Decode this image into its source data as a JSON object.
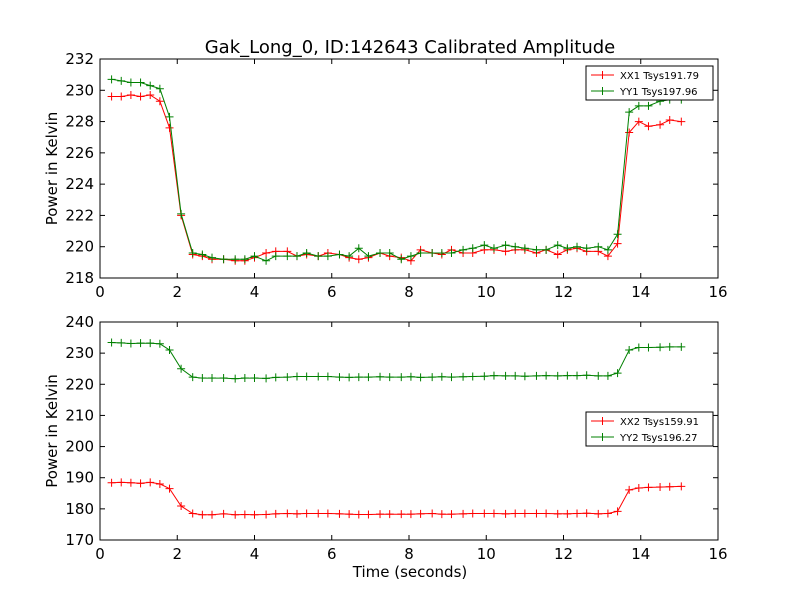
{
  "chart_data": [
    {
      "type": "line",
      "title": "Gak_Long_0, ID:142643 Calibrated Amplitude",
      "xlabel": "",
      "ylabel": "Power in Kelvin",
      "xlim": [
        0,
        16
      ],
      "ylim": [
        218,
        232
      ],
      "xticks": [
        0,
        2,
        4,
        6,
        8,
        10,
        12,
        14,
        16
      ],
      "yticks": [
        218,
        220,
        222,
        224,
        226,
        228,
        230,
        232
      ],
      "legend_position": "upper-right",
      "x": [
        0.3,
        0.55,
        0.8,
        1.05,
        1.3,
        1.55,
        1.8,
        2.1,
        2.4,
        2.65,
        2.9,
        3.2,
        3.5,
        3.75,
        4.0,
        4.3,
        4.55,
        4.85,
        5.1,
        5.35,
        5.65,
        5.9,
        6.2,
        6.45,
        6.7,
        6.95,
        7.25,
        7.5,
        7.8,
        8.05,
        8.3,
        8.6,
        8.85,
        9.1,
        9.4,
        9.65,
        9.95,
        10.2,
        10.5,
        10.75,
        11.0,
        11.3,
        11.55,
        11.85,
        12.1,
        12.35,
        12.6,
        12.9,
        13.15,
        13.4,
        13.7,
        13.95,
        14.2,
        14.5,
        14.75,
        15.05
      ],
      "series": [
        {
          "name": "XX1 Tsys191.79",
          "color": "#ff0000",
          "values": [
            229.6,
            229.6,
            229.7,
            229.6,
            229.7,
            229.3,
            227.6,
            222.0,
            219.5,
            219.4,
            219.2,
            219.2,
            219.1,
            219.1,
            219.3,
            219.6,
            219.7,
            219.7,
            219.4,
            219.5,
            219.4,
            219.6,
            219.5,
            219.3,
            219.2,
            219.3,
            219.6,
            219.4,
            219.3,
            219.1,
            219.8,
            219.6,
            219.5,
            219.8,
            219.6,
            219.6,
            219.8,
            219.8,
            219.7,
            219.8,
            219.8,
            219.6,
            219.8,
            219.5,
            219.8,
            219.9,
            219.7,
            219.7,
            219.4,
            220.2,
            227.3,
            228.0,
            227.7,
            227.8,
            228.1,
            228.0
          ]
        },
        {
          "name": "YY1 Tsys197.96",
          "color": "#008000",
          "values": [
            230.7,
            230.6,
            230.5,
            230.5,
            230.3,
            230.1,
            228.3,
            222.1,
            219.6,
            219.5,
            219.3,
            219.2,
            219.2,
            219.2,
            219.4,
            219.1,
            219.4,
            219.4,
            219.4,
            219.6,
            219.4,
            219.4,
            219.5,
            219.4,
            219.9,
            219.4,
            219.6,
            219.6,
            219.2,
            219.4,
            219.6,
            219.6,
            219.6,
            219.6,
            219.8,
            219.9,
            220.1,
            219.9,
            220.1,
            220.0,
            219.9,
            219.8,
            219.8,
            220.1,
            219.9,
            220.0,
            219.9,
            220.0,
            219.8,
            220.8,
            228.6,
            229.0,
            229.0,
            229.3,
            229.4,
            229.4
          ]
        }
      ]
    },
    {
      "type": "line",
      "title": "",
      "xlabel": "Time (seconds)",
      "ylabel": "Power in Kelvin",
      "xlim": [
        0,
        16
      ],
      "ylim": [
        170,
        240
      ],
      "xticks": [
        0,
        2,
        4,
        6,
        8,
        10,
        12,
        14,
        16
      ],
      "yticks": [
        170,
        180,
        190,
        200,
        210,
        220,
        230,
        240
      ],
      "legend_position": "center-right",
      "x": [
        0.3,
        0.55,
        0.8,
        1.05,
        1.3,
        1.55,
        1.8,
        2.1,
        2.4,
        2.65,
        2.9,
        3.2,
        3.5,
        3.75,
        4.0,
        4.3,
        4.55,
        4.85,
        5.1,
        5.35,
        5.65,
        5.9,
        6.2,
        6.45,
        6.7,
        6.95,
        7.25,
        7.5,
        7.8,
        8.05,
        8.3,
        8.6,
        8.85,
        9.1,
        9.4,
        9.65,
        9.95,
        10.2,
        10.5,
        10.75,
        11.0,
        11.3,
        11.55,
        11.85,
        12.1,
        12.35,
        12.6,
        12.9,
        13.15,
        13.4,
        13.7,
        13.95,
        14.2,
        14.5,
        14.75,
        15.05
      ],
      "series": [
        {
          "name": "XX2 Tsys159.91",
          "color": "#ff0000",
          "values": [
            188.4,
            188.5,
            188.4,
            188.2,
            188.5,
            188.0,
            186.5,
            180.9,
            178.5,
            178.1,
            178.1,
            178.4,
            178.1,
            178.2,
            178.1,
            178.2,
            178.4,
            178.5,
            178.4,
            178.5,
            178.5,
            178.5,
            178.4,
            178.3,
            178.2,
            178.2,
            178.3,
            178.3,
            178.3,
            178.3,
            178.4,
            178.5,
            178.3,
            178.3,
            178.4,
            178.5,
            178.5,
            178.5,
            178.4,
            178.5,
            178.5,
            178.5,
            178.5,
            178.4,
            178.4,
            178.5,
            178.6,
            178.4,
            178.5,
            179.2,
            186.1,
            186.7,
            186.9,
            187.0,
            187.1,
            187.2
          ]
        },
        {
          "name": "YY2 Tsys196.27",
          "color": "#008000",
          "values": [
            233.4,
            233.3,
            233.1,
            233.2,
            233.2,
            233.0,
            231.0,
            225.0,
            222.3,
            222.0,
            222.0,
            222.0,
            221.8,
            222.0,
            222.0,
            221.9,
            222.2,
            222.3,
            222.5,
            222.5,
            222.5,
            222.5,
            222.3,
            222.2,
            222.3,
            222.3,
            222.4,
            222.3,
            222.3,
            222.4,
            222.2,
            222.3,
            222.4,
            222.3,
            222.4,
            222.5,
            222.6,
            222.8,
            222.7,
            222.7,
            222.6,
            222.7,
            222.8,
            222.7,
            222.8,
            222.8,
            222.9,
            222.7,
            222.7,
            223.6,
            231.0,
            231.8,
            231.8,
            231.9,
            232.0,
            232.0
          ]
        }
      ]
    }
  ]
}
